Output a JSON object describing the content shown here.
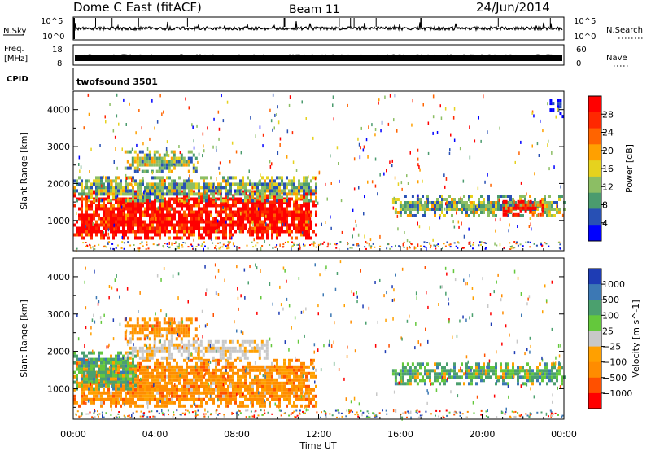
{
  "header": {
    "station": "Dome C East (fitACF)",
    "beam": "Beam 11",
    "date": "24/Jun/2014"
  },
  "top_panels": {
    "nsky_label": "N.Sky",
    "nsky_axis": [
      "10^5",
      "10^0"
    ],
    "nsearch_label": "N.Search",
    "nsearch_axis": [
      "10^5",
      "10^0"
    ],
    "freq_label_1": "Freq.",
    "freq_label_2": "[MHz]",
    "freq_axis": [
      "18",
      "8"
    ],
    "nave_label": "Nave",
    "nave_axis": [
      "60",
      "0"
    ],
    "cpid_label": "CPID",
    "cpid_value": "twofsound 3501"
  },
  "colors": {
    "power_scale": [
      "#0000ff",
      "#2850b4",
      "#4b9b6e",
      "#8cbe64",
      "#e6d21e",
      "#ffa000",
      "#ff6400",
      "#ff2800",
      "#ff0000"
    ],
    "velocity_scale": [
      "#1e3cb4",
      "#3c78b4",
      "#4ba06e",
      "#64c83c",
      "#c8c8c8",
      "#ffa000",
      "#ff8c00",
      "#ff5000",
      "#ff0000"
    ]
  },
  "chart_data": [
    {
      "type": "heatmap",
      "title": "Power",
      "xlabel": "Time UT",
      "ylabel": "Slant Range [km]",
      "xlim": [
        "00:00",
        "24:00"
      ],
      "ylim": [
        180,
        4500
      ],
      "y_ticks": [
        1000,
        2000,
        3000,
        4000
      ],
      "x_tick_labels": [
        "00:00",
        "04:00",
        "08:00",
        "12:00",
        "16:00",
        "20:00",
        "00:00"
      ],
      "colorbar_label": "Power [dB]",
      "colorbar_ticks": [
        "28",
        "24",
        "20",
        "16",
        "12",
        "8",
        "4"
      ],
      "regions": [
        {
          "t0": 0.0,
          "t1": 11.9,
          "r0": 500,
          "r1": 1800,
          "level": "high",
          "value_db": 28
        },
        {
          "t0": 0.0,
          "t1": 11.9,
          "r0": 1500,
          "r1": 2200,
          "level": "medium",
          "value_db": 10
        },
        {
          "t0": 2.5,
          "t1": 6.0,
          "r0": 2300,
          "r1": 2900,
          "level": "medium",
          "value_db": 18
        },
        {
          "t0": 15.6,
          "t1": 24.0,
          "r0": 1100,
          "r1": 1700,
          "level": "medium",
          "value_db": 12
        },
        {
          "t0": 21.0,
          "t1": 23.0,
          "r0": 1150,
          "r1": 1550,
          "level": "high",
          "value_db": 24
        },
        {
          "t0": 23.3,
          "t1": 24.0,
          "r0": 3800,
          "r1": 4300,
          "level": "low",
          "value_db": 6
        }
      ]
    },
    {
      "type": "heatmap",
      "title": "Velocity",
      "xlabel": "Time UT",
      "ylabel": "Slant Range [km]",
      "xlim": [
        "00:00",
        "24:00"
      ],
      "ylim": [
        180,
        4500
      ],
      "y_ticks": [
        1000,
        2000,
        3000,
        4000
      ],
      "x_tick_labels": [
        "00:00",
        "04:00",
        "08:00",
        "12:00",
        "16:00",
        "20:00",
        "00:00"
      ],
      "colorbar_label": "Velocity [m s^-1]",
      "colorbar_ticks": [
        "1000",
        "500",
        "100",
        "25",
        "−25",
        "−100",
        "−500",
        "−1000"
      ],
      "regions": [
        {
          "t0": 0.0,
          "t1": 11.9,
          "r0": 500,
          "r1": 1800,
          "level": "negative",
          "value_ms": -150
        },
        {
          "t0": 0.0,
          "t1": 3.0,
          "r0": 1000,
          "r1": 2000,
          "level": "positive",
          "value_ms": 60
        },
        {
          "t0": 2.5,
          "t1": 9.5,
          "r0": 1800,
          "r1": 2300,
          "level": "near-zero",
          "value_ms": 0
        },
        {
          "t0": 2.5,
          "t1": 6.0,
          "r0": 2300,
          "r1": 2900,
          "level": "negative",
          "value_ms": -60
        },
        {
          "t0": 15.6,
          "t1": 24.0,
          "r0": 1100,
          "r1": 1700,
          "level": "positive",
          "value_ms": 80
        }
      ]
    }
  ]
}
